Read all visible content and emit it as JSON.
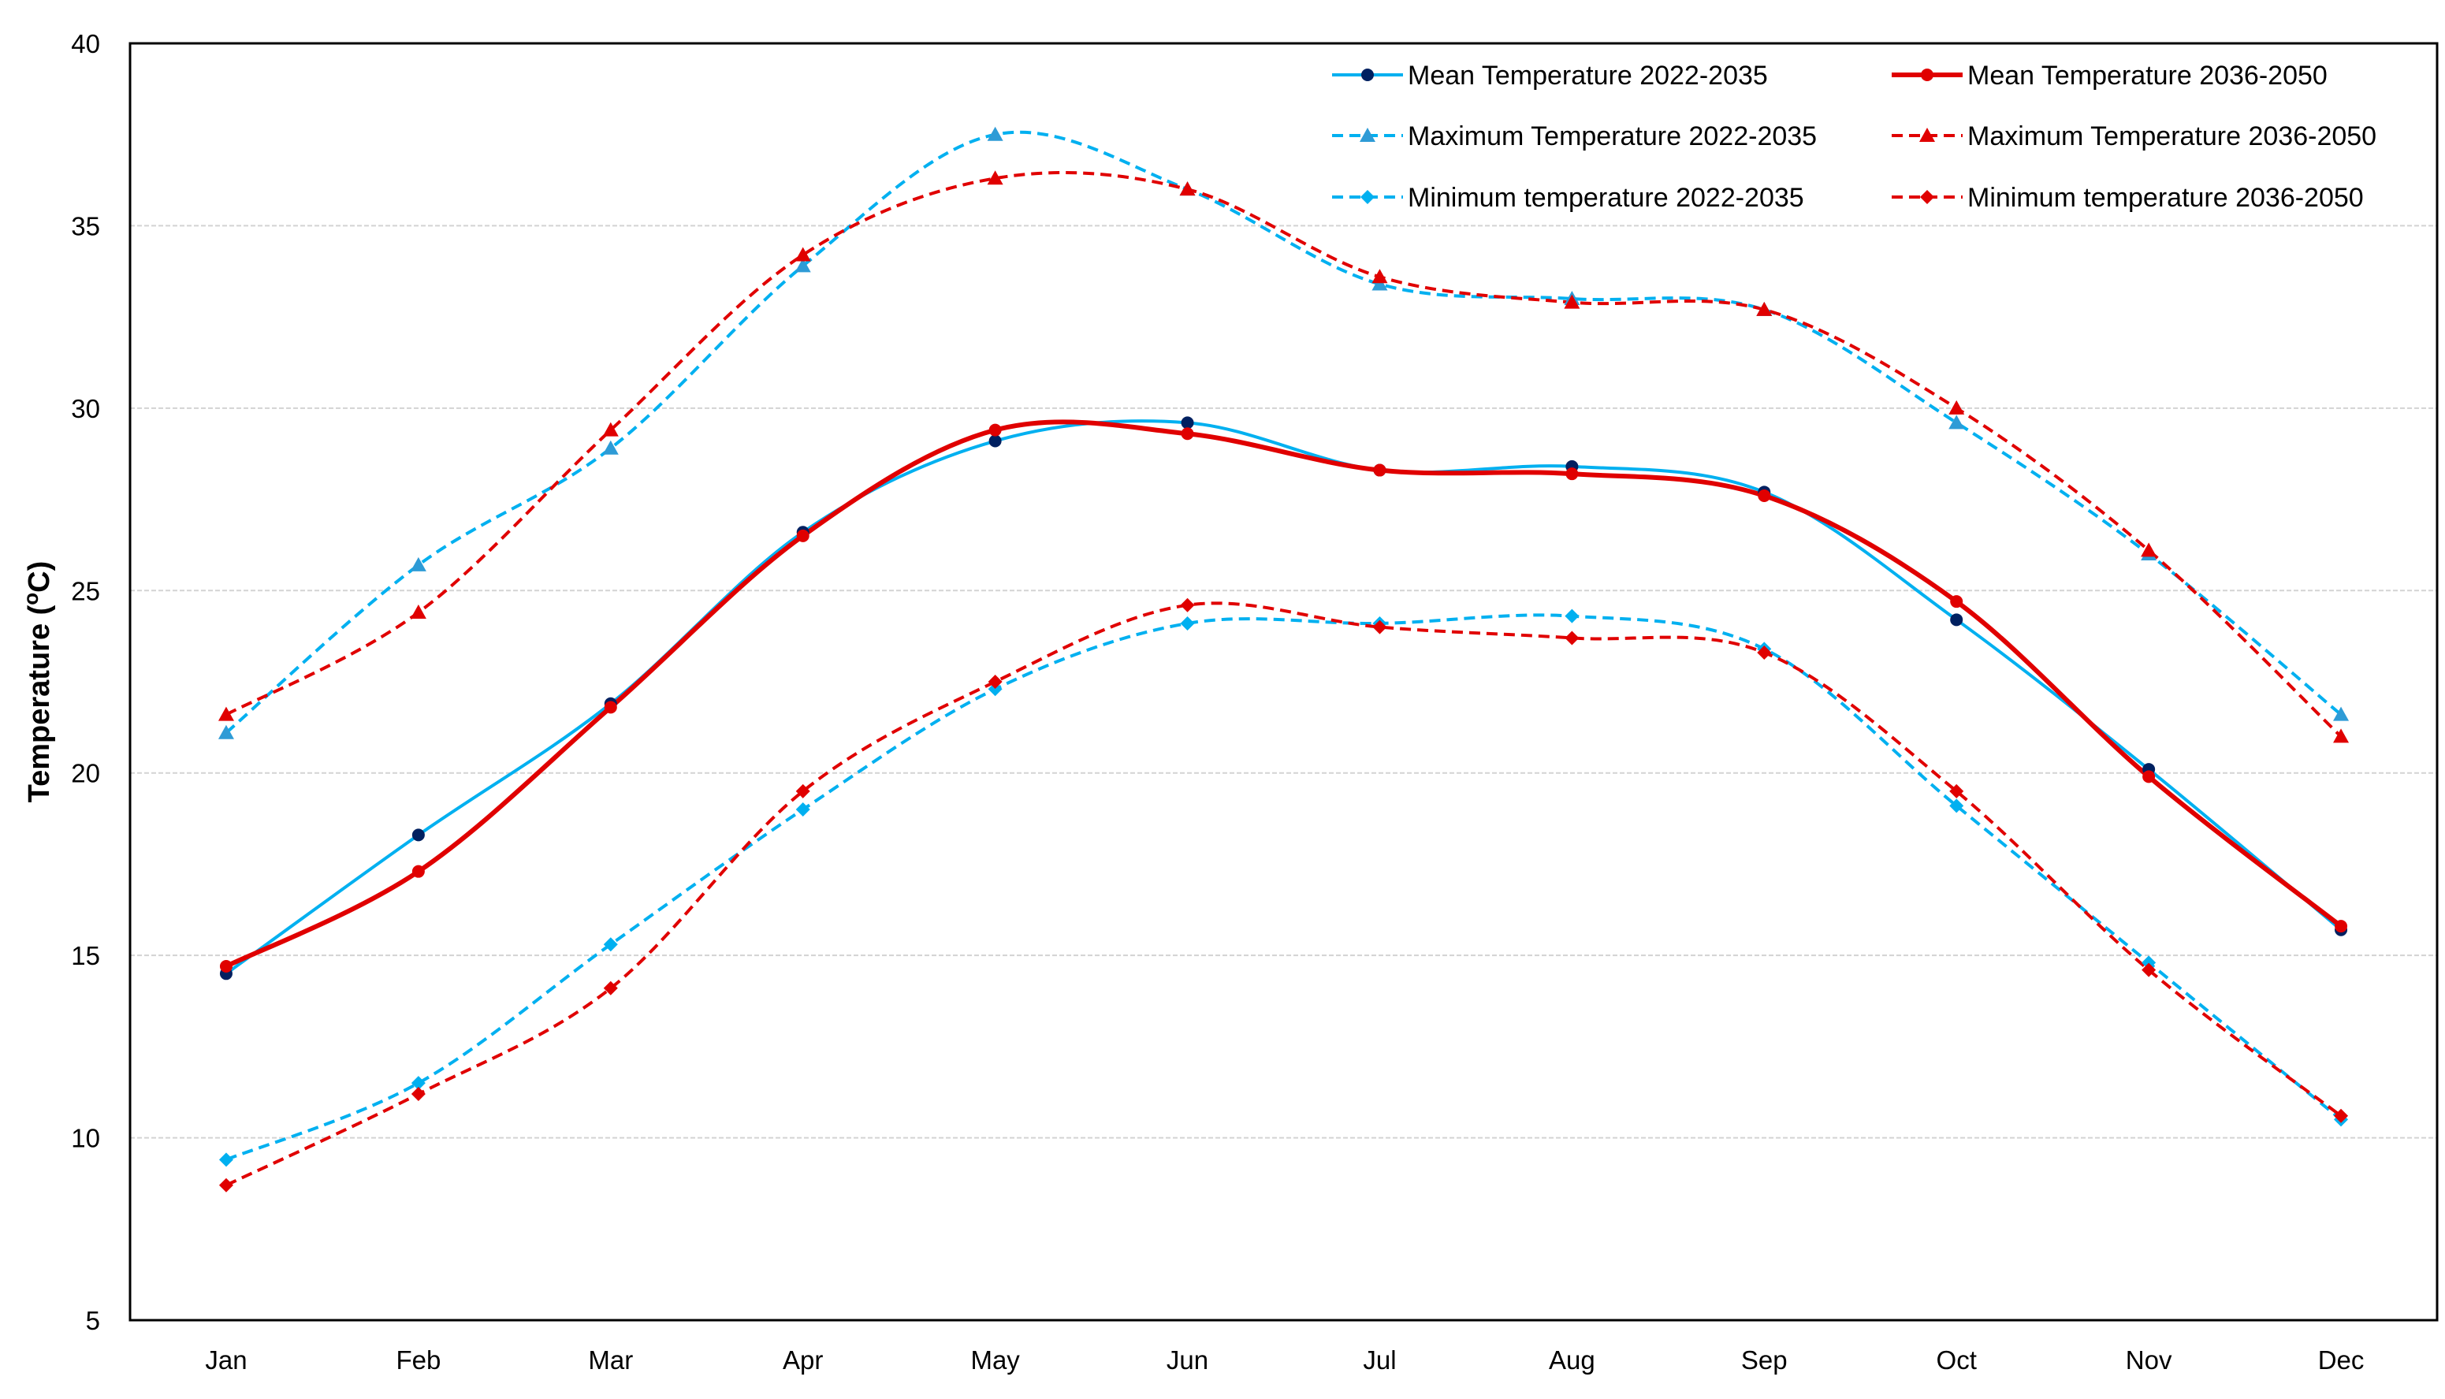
{
  "chart_data": {
    "type": "line",
    "title": "",
    "xlabel": "",
    "ylabel": "Temperature (",
    "ylabel_sup": "o",
    "ylabel_tail": "C)",
    "ylim": [
      5,
      40
    ],
    "yticks": [
      5,
      10,
      15,
      20,
      25,
      30,
      35,
      40
    ],
    "grid": true,
    "legend_position": "top-right",
    "categories": [
      "Jan",
      "Feb",
      "Mar",
      "Apr",
      "May",
      "Jun",
      "Jul",
      "Aug",
      "Sep",
      "Oct",
      "Nov",
      "Dec"
    ],
    "series": [
      {
        "name": "Mean Temperature 2022-2035",
        "color": "#00B0F0",
        "marker_color": "#002060",
        "marker": "circle",
        "dash": "solid",
        "width": "normal",
        "values": [
          14.5,
          18.3,
          21.9,
          26.6,
          29.1,
          29.6,
          28.3,
          28.4,
          27.7,
          24.2,
          20.1,
          15.7
        ]
      },
      {
        "name": "Mean Temperature 2036-2050",
        "color": "#E00000",
        "marker_color": "#E00000",
        "marker": "circle",
        "dash": "solid",
        "width": "thick",
        "values": [
          14.7,
          17.3,
          21.8,
          26.5,
          29.4,
          29.3,
          28.3,
          28.2,
          27.6,
          24.7,
          19.9,
          15.8
        ]
      },
      {
        "name": "Maximum Temperature 2022-2035",
        "color": "#00B0F0",
        "marker_color": "#2E9BD6",
        "marker": "triangle",
        "dash": "dashed",
        "width": "normal",
        "values": [
          21.1,
          25.7,
          28.9,
          33.9,
          37.5,
          36.0,
          33.4,
          33.0,
          32.7,
          29.6,
          26.0,
          21.6
        ]
      },
      {
        "name": "Maximum Temperature 2036-2050",
        "color": "#E00000",
        "marker_color": "#E00000",
        "marker": "triangle",
        "dash": "dashed",
        "width": "normal",
        "values": [
          21.6,
          24.4,
          29.4,
          34.2,
          36.3,
          36.0,
          33.6,
          32.9,
          32.7,
          30.0,
          26.1,
          21.0
        ]
      },
      {
        "name": "Minimum temperature 2022-2035",
        "color": "#00B0F0",
        "marker_color": "#00B0F0",
        "marker": "diamond",
        "dash": "dashed",
        "width": "normal",
        "values": [
          9.4,
          11.5,
          15.3,
          19.0,
          22.3,
          24.1,
          24.1,
          24.3,
          23.4,
          19.1,
          14.8,
          10.5
        ]
      },
      {
        "name": "Minimum temperature 2036-2050",
        "color": "#E00000",
        "marker_color": "#E00000",
        "marker": "diamond",
        "dash": "dashed",
        "width": "normal",
        "values": [
          8.7,
          11.2,
          14.1,
          19.5,
          22.5,
          24.6,
          24.0,
          23.7,
          23.3,
          19.5,
          14.6,
          10.6
        ]
      }
    ]
  }
}
